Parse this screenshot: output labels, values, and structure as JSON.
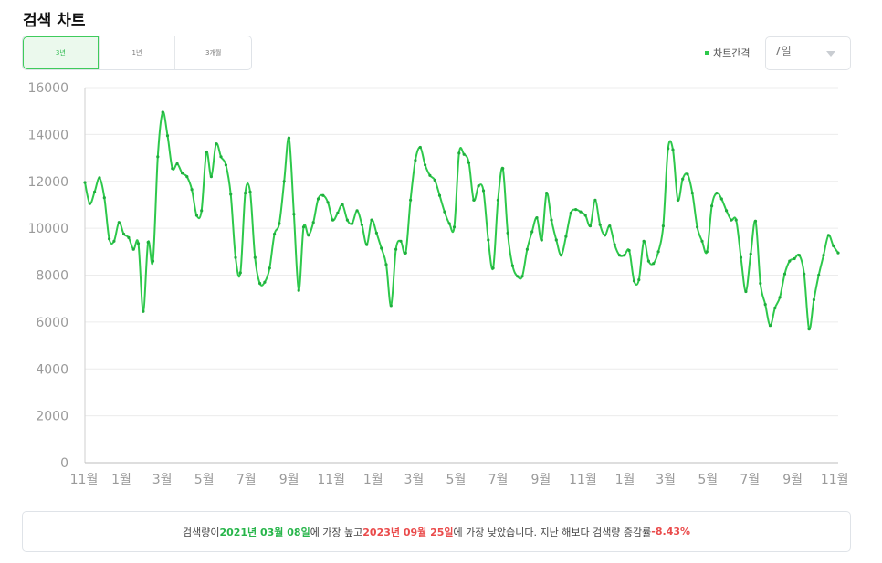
{
  "page": {
    "title": "검색 차트"
  },
  "period_tabs": [
    "3년",
    "1년",
    "3개월"
  ],
  "period_tabs_active": 0,
  "interval": {
    "label": "차트간격",
    "value": "7일"
  },
  "colors": {
    "accent": "#2dc84b",
    "negative": "#ea4b4b",
    "grid": "#ececec",
    "axis": "#bdbdbd"
  },
  "summary": {
    "t1": "검색량이 ",
    "max_date": "2021년 03월 08일",
    "t2": "에 가장 높고 ",
    "min_date": "2023년 09월 25일",
    "t3": "에 가장 낮았습니다. 지난 해보다 검색량 증감률 ",
    "change": "-8.43%"
  },
  "chart_data": {
    "type": "line",
    "title": "",
    "xlabel": "",
    "ylabel": "",
    "ylim": [
      0,
      16000
    ],
    "yticks": [
      0,
      2000,
      4000,
      6000,
      8000,
      10000,
      12000,
      14000,
      16000
    ],
    "grid": true,
    "x_range": [
      "2020-11-09",
      "2023-11-06"
    ],
    "x_tick_labels": [
      {
        "label": "11월",
        "date": "2020-11-01"
      },
      {
        "label": "1월",
        "date": "2021-01-01"
      },
      {
        "label": "3월",
        "date": "2021-03-01"
      },
      {
        "label": "5월",
        "date": "2021-05-01"
      },
      {
        "label": "7월",
        "date": "2021-07-01"
      },
      {
        "label": "9월",
        "date": "2021-09-01"
      },
      {
        "label": "11월",
        "date": "2021-11-01"
      },
      {
        "label": "1월",
        "date": "2022-01-01"
      },
      {
        "label": "3월",
        "date": "2022-03-01"
      },
      {
        "label": "5월",
        "date": "2022-05-01"
      },
      {
        "label": "7월",
        "date": "2022-07-01"
      },
      {
        "label": "9월",
        "date": "2022-09-01"
      },
      {
        "label": "11월",
        "date": "2022-11-01"
      },
      {
        "label": "1월",
        "date": "2023-01-01"
      },
      {
        "label": "3월",
        "date": "2023-03-01"
      },
      {
        "label": "5월",
        "date": "2023-05-01"
      },
      {
        "label": "7월",
        "date": "2023-07-01"
      },
      {
        "label": "9월",
        "date": "2023-09-01"
      },
      {
        "label": "11월",
        "date": "2023-11-01"
      }
    ],
    "series": [
      {
        "color": "#2dc84b",
        "values": [
          11950,
          11050,
          11550,
          12150,
          11300,
          9550,
          9450,
          10250,
          9750,
          9600,
          9100,
          9350,
          6450,
          9400,
          8600,
          13050,
          14950,
          13950,
          12550,
          12750,
          12350,
          12200,
          11650,
          10550,
          10750,
          13250,
          12200,
          13600,
          13050,
          12700,
          11450,
          8750,
          8100,
          11500,
          11550,
          8750,
          7650,
          7700,
          8300,
          9750,
          10200,
          12000,
          13850,
          10600,
          7350,
          10050,
          9700,
          10250,
          11250,
          11400,
          11100,
          10350,
          10650,
          11000,
          10350,
          10200,
          10750,
          10150,
          9300,
          10350,
          9800,
          9150,
          8450,
          6700,
          9100,
          9450,
          8950,
          11200,
          12900,
          13450,
          12700,
          12250,
          12050,
          11400,
          10700,
          10200,
          10050,
          13200,
          13150,
          12800,
          11200,
          11800,
          11600,
          9500,
          8300,
          11200,
          12550,
          9800,
          8400,
          7950,
          7950,
          9100,
          9850,
          10450,
          9500,
          11500,
          10350,
          9500,
          8850,
          9650,
          10650,
          10800,
          10700,
          10550,
          10100,
          11200,
          10150,
          9700,
          10100,
          9300,
          8850,
          8850,
          9050,
          7750,
          7800,
          9450,
          8600,
          8500,
          9000,
          10100,
          13400,
          13350,
          11200,
          12100,
          12300,
          11500,
          10050,
          9450,
          9000,
          10950,
          11500,
          11250,
          10750,
          10350,
          10350,
          8750,
          7300,
          8900,
          10300,
          7650,
          6750,
          5850,
          6600,
          7050,
          8050,
          8600,
          8700,
          8850,
          8050,
          5700,
          6950,
          8000,
          8850,
          9700,
          9250,
          8950
        ]
      }
    ]
  }
}
